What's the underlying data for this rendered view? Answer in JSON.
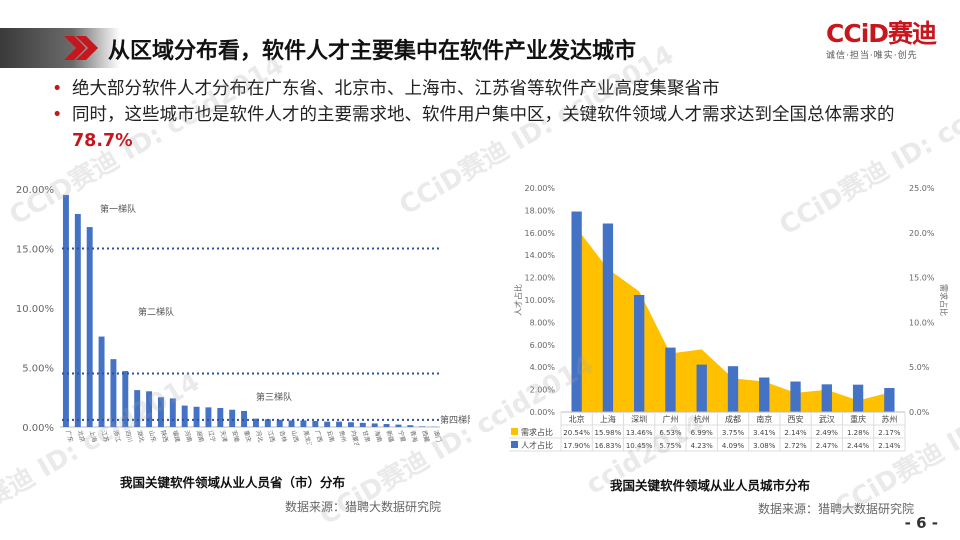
{
  "title": "从区域分布看，软件人才主要集中在软件产业发达城市",
  "logo": {
    "main": "CCiD赛迪",
    "sub": "诚信·担当·唯实·创先"
  },
  "bullets": [
    {
      "text": "绝大部分软件人才分布在广东省、北京市、上海市、江苏省等软件产业高度集聚省市",
      "highlight": ""
    },
    {
      "text": "同时，这些城市也是软件人才的主要需求地、软件用户集中区，关键软件领域人才需求达到全国总体需求的",
      "highlight": "78.7%"
    }
  ],
  "watermarks": [
    "CCiD赛迪 ID: ccid2014",
    "CCiD赛迪 ID: ccid2014",
    "CCiD赛迪 ID: ccid2014",
    "赛迪 ID: ccid2014",
    "CCiD赛迪 ID: ccid2014",
    "ccid2014",
    "CCiD赛迪 ID: ccid"
  ],
  "page_number": "- 6 -",
  "chart_data": [
    {
      "type": "bar",
      "title": "我国关键软件领域从业人员省（市）分布",
      "source": "数据来源：猎聘大数据研究院",
      "categories": [
        "广东",
        "北京",
        "上海",
        "江苏",
        "浙江",
        "四川",
        "湖北",
        "山东",
        "陕西",
        "福建",
        "河南",
        "湖南",
        "辽宁",
        "天津",
        "安徽",
        "重庆",
        "河北",
        "江西",
        "吉林",
        "山西",
        "黑龙江",
        "广西",
        "云南",
        "贵州",
        "内蒙古",
        "甘肃",
        "海南",
        "新疆",
        "宁夏",
        "青海",
        "西藏",
        "澳门"
      ],
      "values": [
        19.5,
        17.9,
        16.8,
        7.6,
        5.7,
        4.7,
        3.1,
        3.0,
        2.5,
        2.4,
        1.8,
        1.7,
        1.65,
        1.6,
        1.45,
        1.35,
        0.7,
        0.65,
        0.6,
        0.55,
        0.55,
        0.5,
        0.45,
        0.45,
        0.4,
        0.35,
        0.3,
        0.25,
        0.2,
        0.15,
        0.05,
        0.02
      ],
      "ylim": [
        0,
        20
      ],
      "yticks": [
        "0.00%",
        "5.00%",
        "10.00%",
        "15.00%",
        "20.00%"
      ],
      "tiers": [
        {
          "label": "第一梯队",
          "level": 15.0
        },
        {
          "label": "第二梯队",
          "level": 4.5
        },
        {
          "label": "第三梯队",
          "level": 0.6
        },
        {
          "label": "第四梯队",
          "level": null
        }
      ]
    },
    {
      "type": "bar+area",
      "title": "我国关键软件领域从业人员城市分布",
      "source": "数据来源：猎聘大数据研究院",
      "categories": [
        "北京",
        "上海",
        "深圳",
        "广州",
        "杭州",
        "成都",
        "南京",
        "西安",
        "武汉",
        "重庆",
        "苏州"
      ],
      "series": [
        {
          "name": "需求占比",
          "type": "area",
          "axis": "right",
          "color": "#ffc000",
          "values": [
            20.54,
            15.98,
            13.46,
            6.53,
            6.99,
            3.75,
            3.41,
            2.14,
            2.49,
            1.28,
            2.17
          ],
          "labels": [
            "20.54%",
            "15.98%",
            "13.46%",
            "6.53%",
            "6.99%",
            "3.75%",
            "3.41%",
            "2.14%",
            "2.49%",
            "1.28%",
            "2.17%"
          ]
        },
        {
          "name": "人才占比",
          "type": "bar",
          "axis": "left",
          "color": "#4472c4",
          "values": [
            17.9,
            16.83,
            10.45,
            5.75,
            4.23,
            4.09,
            3.08,
            2.72,
            2.47,
            2.44,
            2.14
          ],
          "labels": [
            "17.90%",
            "16.83%",
            "10.45%",
            "5.75%",
            "4.23%",
            "4.09%",
            "3.08%",
            "2.72%",
            "2.47%",
            "2.44%",
            "2.14%"
          ]
        }
      ],
      "ylabel_left": "人才占比",
      "ylabel_right": "需求占比",
      "ylim_left": [
        0,
        20
      ],
      "ylim_right": [
        0,
        25
      ],
      "yticks_left": [
        "0.00%",
        "2.00%",
        "4.00%",
        "6.00%",
        "8.00%",
        "10.00%",
        "12.00%",
        "14.00%",
        "16.00%",
        "18.00%",
        "20.00%"
      ],
      "yticks_right": [
        "0.0%",
        "5.0%",
        "10.0%",
        "15.0%",
        "20.0%",
        "25.0%"
      ]
    }
  ],
  "colors": {
    "accent": "#c8161d",
    "bar_blue": "#4472c4",
    "area_yellow": "#ffc000"
  }
}
